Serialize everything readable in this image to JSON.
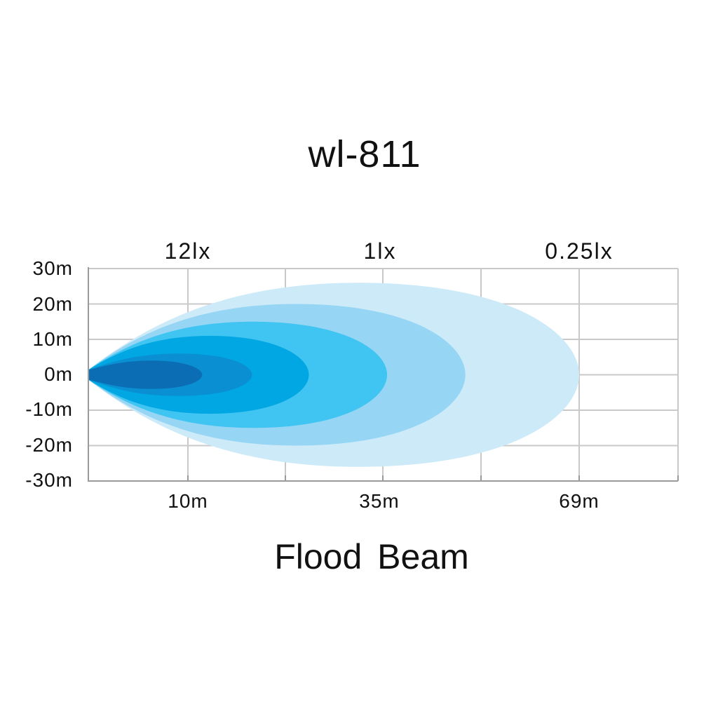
{
  "chart_data": {
    "type": "area",
    "title": "wl-811",
    "subtitle": "Flood Beam",
    "y_ticks": [
      "30m",
      "20m",
      "10m",
      "0m",
      "-10m",
      "-20m",
      "-30m"
    ],
    "ylim": [
      -30,
      30
    ],
    "x_labels": [
      "10m",
      "35m",
      "69m"
    ],
    "lux_labels": [
      "12lx",
      "1lx",
      "0.25lx"
    ],
    "grid": true,
    "series": [
      {
        "lux": "0.25lx",
        "reach": 69,
        "half_width": 26,
        "color": "#cdeaf8"
      },
      {
        "lux": "1lx",
        "reach": 53,
        "half_width": 20,
        "color": "#96d6f4"
      },
      {
        "lux": "",
        "reach": 42,
        "half_width": 15,
        "color": "#40c4f1"
      },
      {
        "lux": "",
        "reach": 31,
        "half_width": 11,
        "color": "#00a7e3"
      },
      {
        "lux": "",
        "reach": 23,
        "half_width": 6,
        "color": "#0a8fd2"
      },
      {
        "lux": "12lx",
        "reach": 16,
        "half_width": 4,
        "color": "#0b6db3"
      }
    ]
  }
}
